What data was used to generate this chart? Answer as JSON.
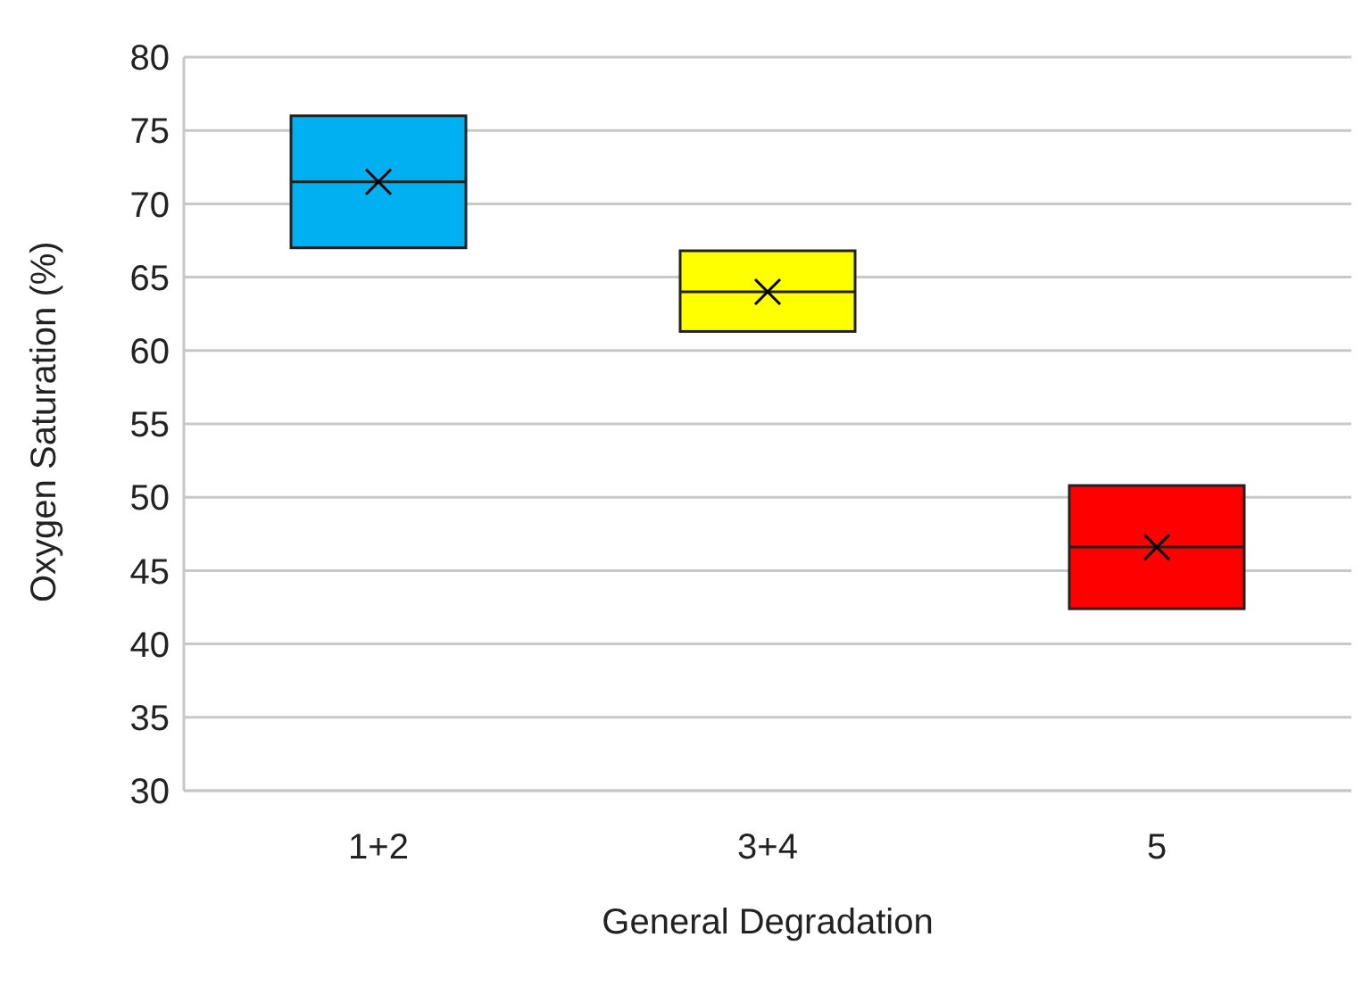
{
  "chart_data": {
    "type": "box",
    "xlabel": "General Degradation",
    "ylabel": "Oxygen Saturation (%)",
    "categories": [
      "1+2",
      "3+4",
      "5"
    ],
    "boxes": [
      {
        "low": 67,
        "q1": 67,
        "median": 71.5,
        "q3": 76,
        "high": 76,
        "mean": 71.5
      },
      {
        "low": 61.3,
        "q1": 61.3,
        "median": 64,
        "q3": 66.8,
        "high": 66.8,
        "mean": 64
      },
      {
        "low": 42.4,
        "q1": 42.4,
        "median": 46.6,
        "q3": 50.8,
        "high": 50.8,
        "mean": 46.6
      }
    ],
    "colors": [
      "#00b0f0",
      "#ffff00",
      "#ff0000"
    ],
    "ylim": [
      30,
      80
    ],
    "yticks": [
      30,
      35,
      40,
      45,
      50,
      55,
      60,
      65,
      70,
      75,
      80
    ],
    "grid": "y",
    "marker": "cross"
  }
}
